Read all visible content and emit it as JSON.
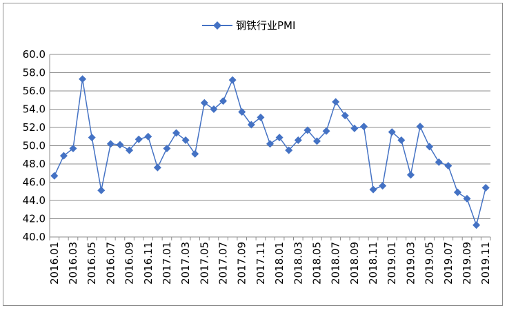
{
  "chart_data": {
    "type": "line",
    "title": "",
    "xlabel": "",
    "ylabel": "",
    "ylim": [
      40,
      60
    ],
    "ytick_step": 2,
    "ytick_labels": [
      "40.0",
      "42.0",
      "44.0",
      "46.0",
      "48.0",
      "50.0",
      "52.0",
      "54.0",
      "56.0",
      "58.0",
      "60.0"
    ],
    "grid": true,
    "legend_position": "top-center",
    "x": [
      "2016.01",
      "2016.02",
      "2016.03",
      "2016.04",
      "2016.05",
      "2016.06",
      "2016.07",
      "2016.08",
      "2016.09",
      "2016.10",
      "2016.11",
      "2016.12",
      "2017.01",
      "2017.02",
      "2017.03",
      "2017.04",
      "2017.05",
      "2017.06",
      "2017.07",
      "2017.08",
      "2017.09",
      "2017.10",
      "2017.11",
      "2017.12",
      "2018.01",
      "2018.02",
      "2018.03",
      "2018.04",
      "2018.05",
      "2018.06",
      "2018.07",
      "2018.08",
      "2018.09",
      "2018.10",
      "2018.11",
      "2018.12",
      "2019.01",
      "2019.02",
      "2019.03",
      "2019.04",
      "2019.05",
      "2019.06",
      "2019.07",
      "2019.08",
      "2019.09",
      "2019.10",
      "2019.11"
    ],
    "x_tick_labels": [
      "2016.01",
      "2016.03",
      "2016.05",
      "2016.07",
      "2016.09",
      "2016.11",
      "2017.01",
      "2017.03",
      "2017.05",
      "2017.07",
      "2017.09",
      "2017.11",
      "2018.01",
      "2018.03",
      "2018.05",
      "2018.07",
      "2018.09",
      "2018.11",
      "2019.01",
      "2019.03",
      "2019.05",
      "2019.07",
      "2019.09",
      "2019.11"
    ],
    "series": [
      {
        "name": "钢铁行业PMI",
        "color": "#4472c4",
        "marker": "diamond",
        "values": [
          46.7,
          48.9,
          49.7,
          57.3,
          50.9,
          45.1,
          50.2,
          50.1,
          49.5,
          50.7,
          51.0,
          47.6,
          49.7,
          51.4,
          50.6,
          49.1,
          54.7,
          54.0,
          54.9,
          57.2,
          53.7,
          52.3,
          53.1,
          50.2,
          50.9,
          49.5,
          50.6,
          51.7,
          50.5,
          51.6,
          54.8,
          53.3,
          51.9,
          52.1,
          45.2,
          45.6,
          51.5,
          50.6,
          46.8,
          52.1,
          49.9,
          48.2,
          47.8,
          44.9,
          44.2,
          41.3,
          45.4
        ]
      }
    ]
  }
}
